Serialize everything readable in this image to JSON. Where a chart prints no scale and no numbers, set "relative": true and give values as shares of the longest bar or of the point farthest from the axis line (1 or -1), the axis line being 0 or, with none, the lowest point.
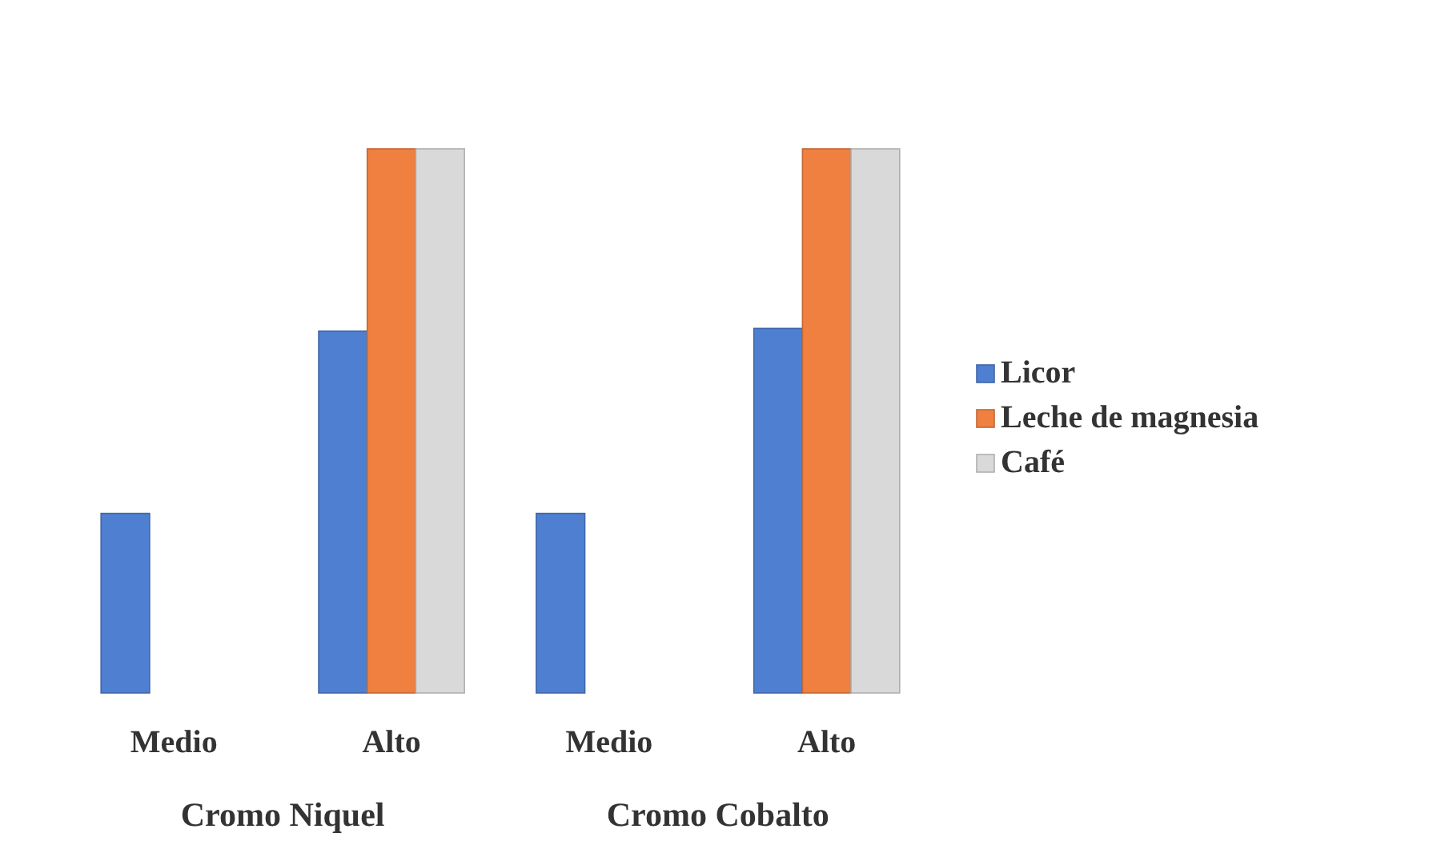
{
  "chart_data": {
    "type": "bar",
    "relative": true,
    "categories": [
      "Medio",
      "Alto",
      "Medio",
      "Alto"
    ],
    "series": [
      {
        "name": "Licor",
        "color": "#4f7fd0",
        "values": [
          0.33,
          0.665,
          0.33,
          0.67
        ]
      },
      {
        "name": "Leche de magnesia",
        "color": "#f08040",
        "values": [
          null,
          1,
          null,
          1
        ]
      },
      {
        "name": "Café",
        "color": "#d9d9d9",
        "values": [
          null,
          1,
          null,
          1
        ]
      }
    ],
    "annotations": [
      "Cromo Niquel",
      "Cromo Cobalto"
    ],
    "legend": "right"
  }
}
